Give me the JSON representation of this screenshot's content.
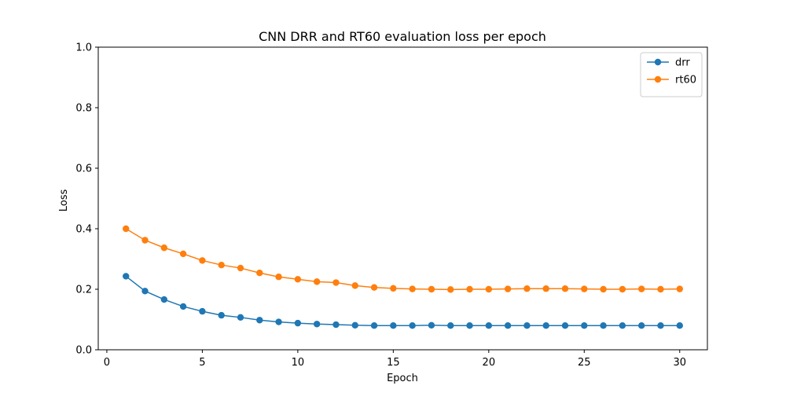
{
  "chart_data": {
    "type": "line",
    "title": "CNN DRR and RT60 evaluation loss per epoch",
    "xlabel": "Epoch",
    "ylabel": "Loss",
    "xlim": [
      -0.45,
      31.45
    ],
    "ylim": [
      0.0,
      1.0
    ],
    "xticks": [
      0,
      5,
      10,
      15,
      20,
      25,
      30
    ],
    "yticks": [
      0.0,
      0.2,
      0.4,
      0.6,
      0.8,
      1.0
    ],
    "xtick_labels": [
      "0",
      "5",
      "10",
      "15",
      "20",
      "25",
      "30"
    ],
    "ytick_labels": [
      "0.0",
      "0.2",
      "0.4",
      "0.6",
      "0.8",
      "1.0"
    ],
    "grid": false,
    "legend_position": "top-right",
    "x": [
      1,
      2,
      3,
      4,
      5,
      6,
      7,
      8,
      9,
      10,
      11,
      12,
      13,
      14,
      15,
      16,
      17,
      18,
      19,
      20,
      21,
      22,
      23,
      24,
      25,
      26,
      27,
      28,
      29,
      30
    ],
    "series": [
      {
        "name": "drr",
        "color": "#1f77b4",
        "marker": "circle",
        "values": [
          0.243,
          0.194,
          0.166,
          0.143,
          0.127,
          0.114,
          0.107,
          0.098,
          0.092,
          0.088,
          0.085,
          0.083,
          0.081,
          0.08,
          0.08,
          0.08,
          0.081,
          0.08,
          0.08,
          0.08,
          0.08,
          0.08,
          0.08,
          0.08,
          0.08,
          0.08,
          0.08,
          0.08,
          0.08,
          0.08
        ]
      },
      {
        "name": "rt60",
        "color": "#ff7f0e",
        "marker": "circle",
        "values": [
          0.4,
          0.362,
          0.337,
          0.317,
          0.295,
          0.28,
          0.27,
          0.254,
          0.241,
          0.233,
          0.225,
          0.222,
          0.212,
          0.206,
          0.203,
          0.201,
          0.2,
          0.199,
          0.2,
          0.2,
          0.201,
          0.202,
          0.202,
          0.202,
          0.201,
          0.2,
          0.2,
          0.201,
          0.2,
          0.201
        ]
      }
    ]
  }
}
